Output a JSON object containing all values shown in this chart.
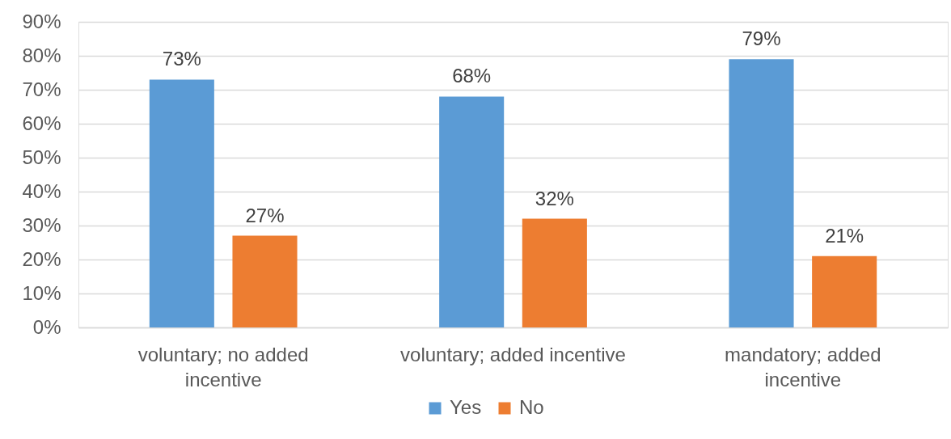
{
  "chart_data": {
    "type": "bar",
    "categories": [
      "voluntary; no added incentive",
      "voluntary; added incentive",
      "mandatory; added incentive"
    ],
    "series": [
      {
        "name": "Yes",
        "color": "#5b9bd5",
        "values": [
          73,
          68,
          79
        ],
        "value_labels": [
          "73%",
          "68%",
          "79%"
        ]
      },
      {
        "name": "No",
        "color": "#ed7d31",
        "values": [
          27,
          32,
          21
        ],
        "value_labels": [
          "27%",
          "32%",
          "21%"
        ]
      }
    ],
    "ylim": [
      0,
      90
    ],
    "yticks": [
      {
        "value": 0,
        "label": "0%"
      },
      {
        "value": 10,
        "label": "10%"
      },
      {
        "value": 20,
        "label": "20%"
      },
      {
        "value": 30,
        "label": "30%"
      },
      {
        "value": 40,
        "label": "40%"
      },
      {
        "value": 50,
        "label": "50%"
      },
      {
        "value": 60,
        "label": "60%"
      },
      {
        "value": 70,
        "label": "70%"
      },
      {
        "value": 80,
        "label": "80%"
      },
      {
        "value": 90,
        "label": "90%"
      }
    ],
    "grid": "y",
    "legend": "bottom"
  }
}
